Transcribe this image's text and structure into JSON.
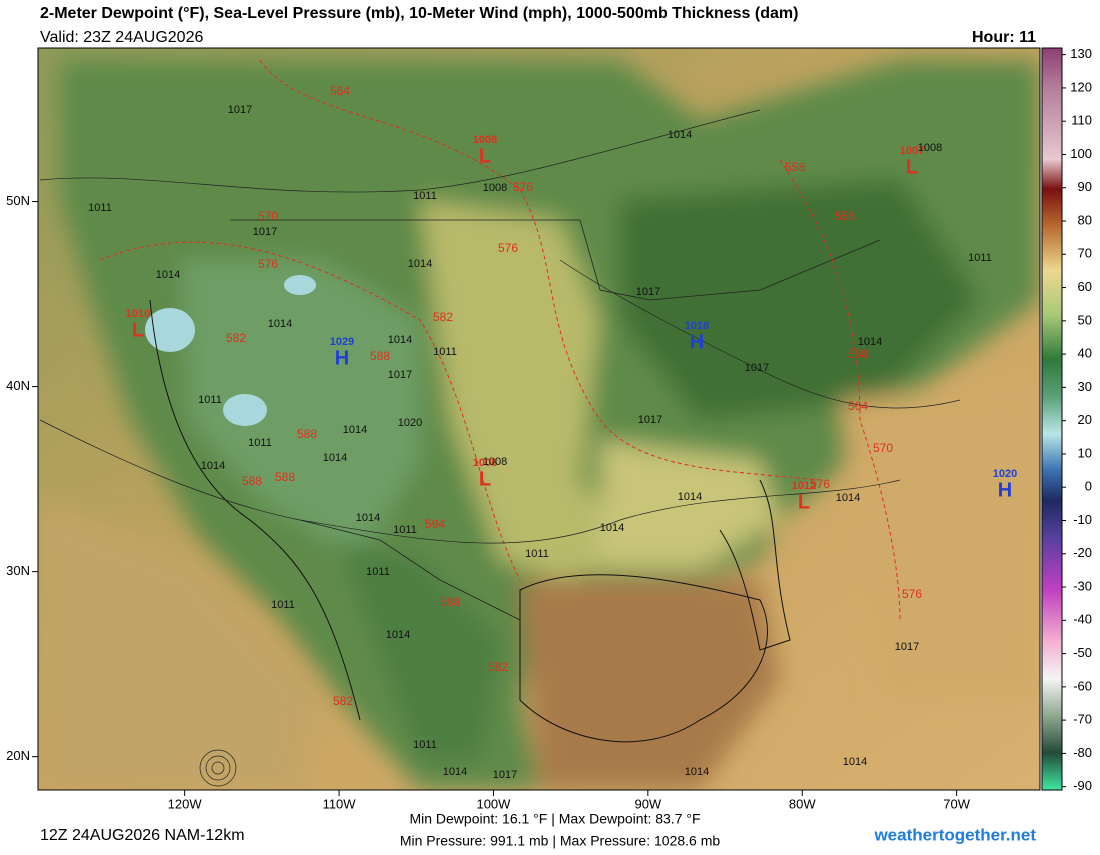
{
  "header": {
    "title": "2-Meter Dewpoint (°F), Sea-Level Pressure (mb), 10-Meter Wind (mph), 1000-500mb Thickness (dam)",
    "valid": "Valid: 23Z 24AUG2026",
    "hour": "Hour: 11"
  },
  "colorbar": {
    "lim": [
      -91,
      132
    ],
    "ticks": [
      130,
      120,
      110,
      100,
      90,
      80,
      70,
      60,
      50,
      40,
      30,
      20,
      10,
      0,
      -10,
      -20,
      -30,
      -40,
      -50,
      -60,
      -70,
      -80,
      -90
    ]
  },
  "map": {
    "xlim": [
      -129.5,
      -64.6
    ],
    "ylim": [
      18.2,
      58.3
    ],
    "xticks": [
      {
        "value": -120,
        "label": "120W"
      },
      {
        "value": -110,
        "label": "110W"
      },
      {
        "value": -100,
        "label": "100W"
      },
      {
        "value": -90,
        "label": "90W"
      },
      {
        "value": -80,
        "label": "80W"
      },
      {
        "value": -70,
        "label": "70W"
      }
    ],
    "yticks": [
      {
        "value": 50,
        "label": "50N"
      },
      {
        "value": 40,
        "label": "40N"
      },
      {
        "value": 30,
        "label": "30N"
      },
      {
        "value": 20,
        "label": "20N"
      }
    ],
    "pressure_centers": [
      {
        "letter": "L",
        "value": 1008
      },
      {
        "letter": "L",
        "value": 1007
      },
      {
        "letter": "L",
        "value": 1010
      },
      {
        "letter": "H",
        "value": 1029
      },
      {
        "letter": "H",
        "value": 1018
      },
      {
        "letter": "L",
        "value": 1006
      },
      {
        "letter": "L",
        "value": 1012
      },
      {
        "letter": "H",
        "value": 1020
      }
    ],
    "isobar_labels": [
      1017,
      1014,
      1008,
      1008,
      1011,
      1011,
      1017,
      1014,
      1014,
      1011,
      1017,
      1014,
      1014,
      1011,
      1014,
      1017,
      1017,
      1011,
      1020,
      1014,
      1017,
      1011,
      1014,
      1008,
      1014,
      1014,
      1014,
      1014,
      1011,
      1014,
      1011,
      1011,
      1011,
      1014,
      1017,
      1011,
      1014,
      1014,
      1014,
      1017
    ],
    "thickness_labels": [
      564,
      576,
      570,
      576,
      576,
      582,
      582,
      588,
      588,
      588,
      588,
      594,
      588,
      582,
      582,
      558,
      558,
      558,
      564,
      570,
      576,
      576
    ]
  },
  "footer": {
    "run": "12Z 24AUG2026 NAM-12km",
    "stats_line1": "Min Dewpoint:  16.1 °F | Max Dewpoint:  83.7 °F",
    "stats_line2": "Min Pressure: 991.1 mb | Max Pressure: 1028.6 mb",
    "site": "weathertogether.net"
  }
}
